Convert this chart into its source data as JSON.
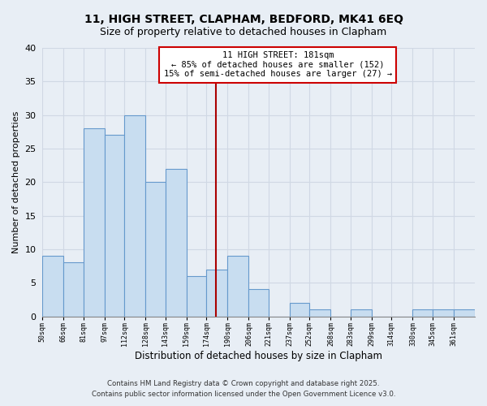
{
  "title": "11, HIGH STREET, CLAPHAM, BEDFORD, MK41 6EQ",
  "subtitle": "Size of property relative to detached houses in Clapham",
  "xlabel": "Distribution of detached houses by size in Clapham",
  "ylabel": "Number of detached properties",
  "bin_labels": [
    "50sqm",
    "66sqm",
    "81sqm",
    "97sqm",
    "112sqm",
    "128sqm",
    "143sqm",
    "159sqm",
    "174sqm",
    "190sqm",
    "206sqm",
    "221sqm",
    "237sqm",
    "252sqm",
    "268sqm",
    "283sqm",
    "299sqm",
    "314sqm",
    "330sqm",
    "345sqm",
    "361sqm"
  ],
  "bin_edges": [
    50,
    66,
    81,
    97,
    112,
    128,
    143,
    159,
    174,
    190,
    206,
    221,
    237,
    252,
    268,
    283,
    299,
    314,
    330,
    345,
    361,
    377
  ],
  "counts": [
    9,
    8,
    28,
    27,
    30,
    20,
    22,
    6,
    7,
    9,
    4,
    0,
    2,
    1,
    0,
    1,
    0,
    0,
    1,
    1,
    1
  ],
  "bar_color": "#c8ddf0",
  "bar_edge_color": "#6699cc",
  "property_size": 181,
  "vline_color": "#aa0000",
  "annotation_line1": "11 HIGH STREET: 181sqm",
  "annotation_line2": "← 85% of detached houses are smaller (152)",
  "annotation_line3": "15% of semi-detached houses are larger (27) →",
  "annotation_box_color": "#ffffff",
  "annotation_box_edge": "#cc0000",
  "footer_line1": "Contains HM Land Registry data © Crown copyright and database right 2025.",
  "footer_line2": "Contains public sector information licensed under the Open Government Licence v3.0.",
  "ylim": [
    0,
    40
  ],
  "yticks": [
    0,
    5,
    10,
    15,
    20,
    25,
    30,
    35,
    40
  ],
  "background_color": "#e8eef5",
  "grid_color": "#d0d8e4"
}
